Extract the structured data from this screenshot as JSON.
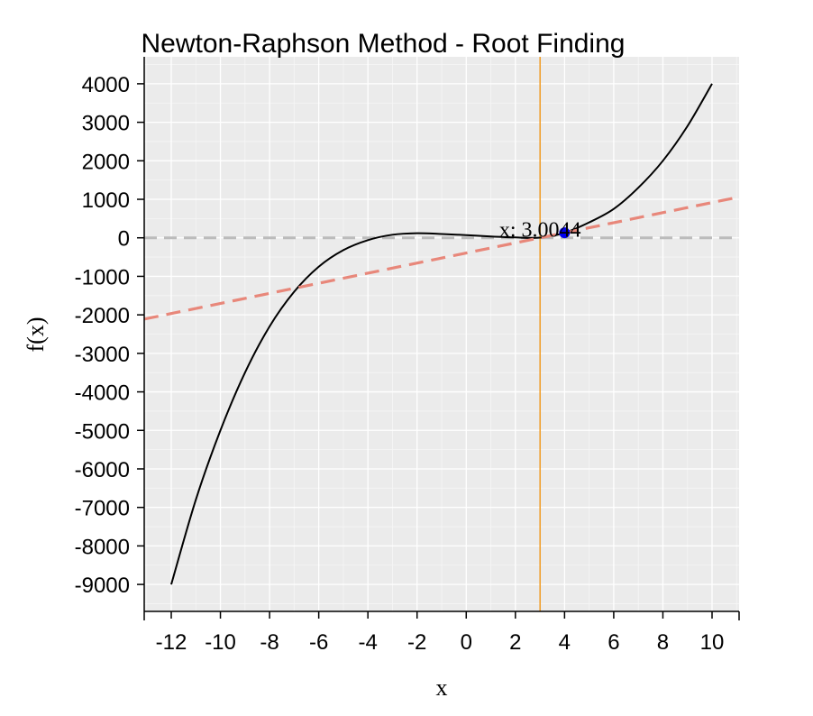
{
  "chart_data": {
    "type": "line",
    "title": "Newton-Raphson Method - Root Finding",
    "xlabel": "x",
    "ylabel": "f(x)",
    "xlim": [
      -13.1,
      11.1
    ],
    "ylim": [
      -9700,
      4700
    ],
    "x_ticks": [
      -12,
      -10,
      -8,
      -6,
      -4,
      -2,
      0,
      2,
      4,
      6,
      8,
      10
    ],
    "x_tick_labels": [
      "-12",
      "-10",
      "-8",
      "-6",
      "-4",
      "-2",
      "0",
      "2",
      "4",
      "6",
      "8",
      "10"
    ],
    "y_ticks": [
      4000,
      3000,
      2000,
      1000,
      0,
      -1000,
      -2000,
      -3000,
      -4000,
      -5000,
      -6000,
      -7000,
      -8000,
      -9000
    ],
    "y_tick_labels": [
      "4000",
      "3000",
      "2000",
      "1000",
      "0",
      "-1000",
      "-2000",
      "-3000",
      "-4000",
      "-5000",
      "-6000",
      "-7000",
      "-8000",
      "-9000"
    ],
    "grid": true,
    "series": [
      {
        "x": [
          -12,
          -11,
          -10,
          -9,
          -8,
          -7,
          -6,
          -5,
          -4,
          -3,
          -2,
          -1,
          0,
          1,
          2,
          3,
          4,
          5,
          6,
          7,
          8,
          9,
          10
        ],
        "y": [
          -9000,
          -6800,
          -5000,
          -3500,
          -2300,
          -1400,
          -750,
          -320,
          -60,
          80,
          120,
          100,
          70,
          35,
          10,
          5,
          130,
          400,
          750,
          1300,
          2000,
          2900,
          4000
        ],
        "color": "#000000"
      },
      {
        "type": "tangent",
        "point": [
          4.0,
          130
        ],
        "slope": 131,
        "color": "#e8877a",
        "dashed": true
      }
    ],
    "reference_lines": [
      {
        "axis": "y",
        "value": 0,
        "color": "#bbbbbb",
        "dashed": true
      },
      {
        "axis": "x",
        "value": 3.0044,
        "color": "#f0a030"
      }
    ],
    "current_point": {
      "x": 4.0,
      "y": 130,
      "color": "#0000ee"
    },
    "annotation": {
      "text": "x: 3.0044",
      "x": 3.0044,
      "y": 0
    }
  }
}
